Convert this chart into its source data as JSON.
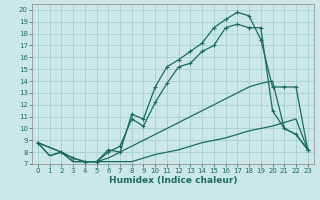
{
  "xlabel": "Humidex (Indice chaleur)",
  "bg_color": "#cce8e6",
  "grid_color": "#aad4d0",
  "line_color": "#1a6b5e",
  "xlim": [
    -0.5,
    23.5
  ],
  "ylim": [
    7.0,
    20.5
  ],
  "xticks": [
    0,
    1,
    2,
    3,
    4,
    5,
    6,
    7,
    8,
    9,
    10,
    11,
    12,
    13,
    14,
    15,
    16,
    17,
    18,
    19,
    20,
    21,
    22,
    23
  ],
  "yticks": [
    7,
    8,
    9,
    10,
    11,
    12,
    13,
    14,
    15,
    16,
    17,
    18,
    19,
    20
  ],
  "curves": [
    {
      "x": [
        0,
        1,
        2,
        3,
        4,
        5,
        6,
        7,
        8,
        9,
        10,
        11,
        12,
        13,
        14,
        15,
        16,
        17,
        18,
        19,
        20,
        21,
        22,
        23
      ],
      "y": [
        8.8,
        7.7,
        8.0,
        7.2,
        7.2,
        7.2,
        7.2,
        7.2,
        7.2,
        7.5,
        7.8,
        8.0,
        8.2,
        8.5,
        8.8,
        9.0,
        9.2,
        9.5,
        9.8,
        10.0,
        10.2,
        10.5,
        10.8,
        8.2
      ],
      "marker": false,
      "lw": 0.9
    },
    {
      "x": [
        0,
        1,
        2,
        3,
        4,
        5,
        6,
        7,
        8,
        9,
        10,
        11,
        12,
        13,
        14,
        15,
        16,
        17,
        18,
        19,
        20,
        21,
        22,
        23
      ],
      "y": [
        8.8,
        7.7,
        8.0,
        7.2,
        7.2,
        7.2,
        7.5,
        8.0,
        8.5,
        9.0,
        9.5,
        10.0,
        10.5,
        11.0,
        11.5,
        12.0,
        12.5,
        13.0,
        13.5,
        13.8,
        14.0,
        10.0,
        9.5,
        8.2
      ],
      "marker": false,
      "lw": 0.9
    },
    {
      "x": [
        0,
        2,
        3,
        4,
        5,
        6,
        7,
        8,
        9,
        10,
        11,
        12,
        13,
        14,
        15,
        16,
        17,
        18,
        19,
        20,
        21,
        22,
        23
      ],
      "y": [
        8.8,
        8.0,
        7.5,
        7.2,
        7.2,
        8.0,
        8.5,
        10.8,
        10.2,
        12.2,
        13.8,
        15.2,
        15.5,
        16.5,
        17.0,
        18.5,
        18.8,
        18.5,
        18.5,
        11.5,
        10.0,
        9.5,
        8.2
      ],
      "marker": true,
      "lw": 0.9
    },
    {
      "x": [
        0,
        2,
        3,
        4,
        5,
        6,
        7,
        8,
        9,
        10,
        11,
        12,
        13,
        14,
        15,
        16,
        17,
        18,
        19,
        20,
        21,
        22,
        23
      ],
      "y": [
        8.8,
        8.0,
        7.5,
        7.2,
        7.2,
        8.2,
        8.0,
        11.2,
        10.8,
        13.5,
        15.2,
        15.8,
        16.5,
        17.2,
        18.5,
        19.2,
        19.8,
        19.5,
        17.5,
        13.5,
        13.5,
        13.5,
        8.2
      ],
      "marker": true,
      "lw": 0.9
    }
  ]
}
